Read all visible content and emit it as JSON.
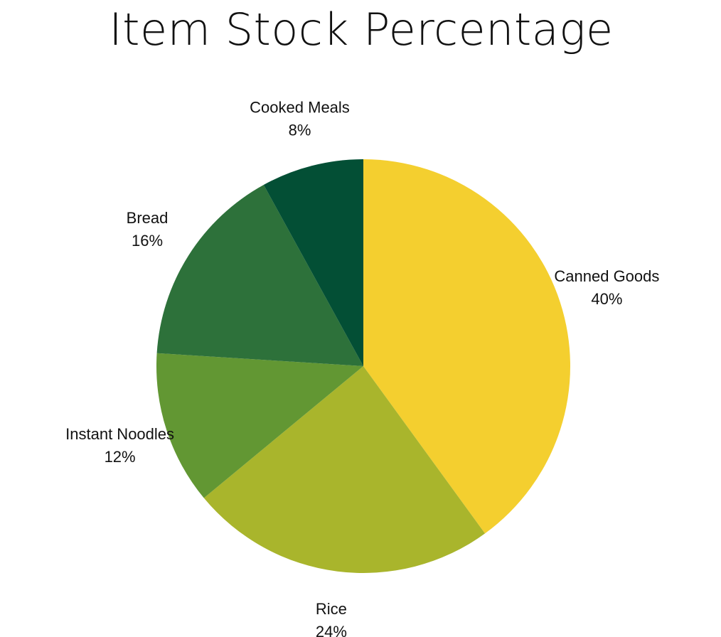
{
  "chart_data": {
    "type": "pie",
    "title": "Item Stock Percentage",
    "slices": [
      {
        "label": "Canned Goods",
        "percent_label": "40%",
        "value": 40,
        "color": "#F4CF2F"
      },
      {
        "label": "Rice",
        "percent_label": "24%",
        "value": 24,
        "color": "#A9B52C"
      },
      {
        "label": "Instant Noodles",
        "percent_label": "12%",
        "value": 12,
        "color": "#629733"
      },
      {
        "label": "Bread",
        "percent_label": "16%",
        "value": 16,
        "color": "#2D713A"
      },
      {
        "label": "Cooked Meals",
        "percent_label": "8%",
        "value": 8,
        "color": "#034F35"
      }
    ]
  }
}
